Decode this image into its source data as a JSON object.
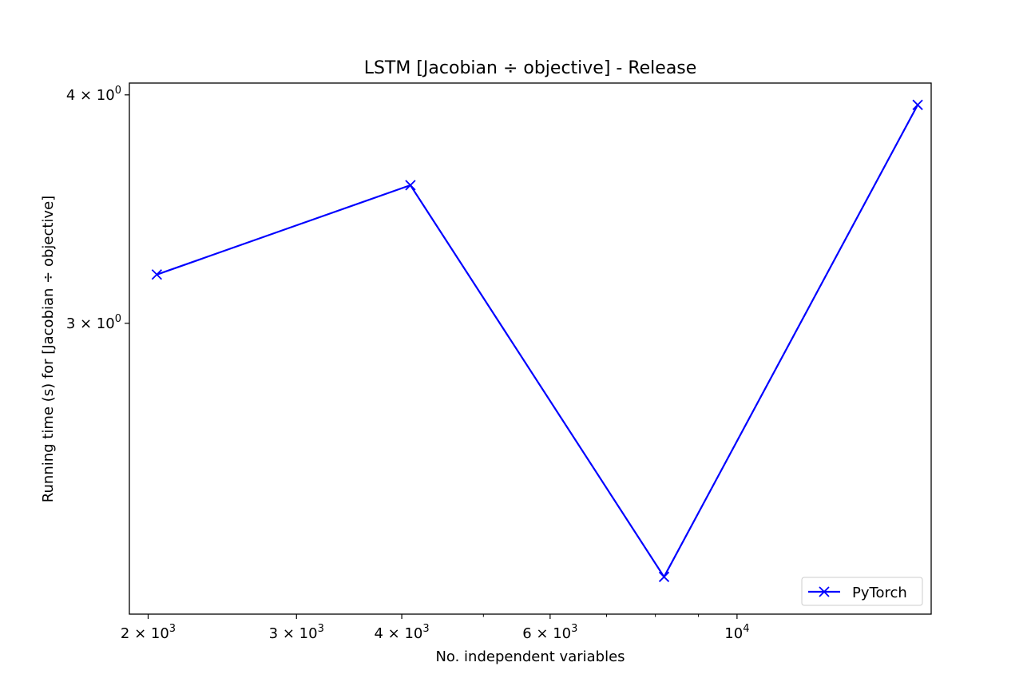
{
  "chart_data": {
    "type": "line",
    "title": "LSTM [Jacobian ÷ objective] - Release",
    "xlabel": "No. independent variables",
    "ylabel": "Running time (s) for [Jacobian ÷ objective]",
    "xscale": "log",
    "yscale": "log",
    "xlim": [
      1900,
      17000
    ],
    "ylim": [
      2.08,
      4.06
    ],
    "grid": false,
    "legend": {
      "placement": "lower-right",
      "entries": [
        "PyTorch"
      ]
    },
    "series": [
      {
        "name": "PyTorch",
        "color": "#0000ff",
        "marker": "x",
        "x": [
          2048,
          4096,
          8192,
          16384
        ],
        "y": [
          3.19,
          3.57,
          2.18,
          3.95
        ]
      }
    ],
    "xticks": [
      {
        "value": 2000,
        "base": "2 × 10",
        "exp": "3"
      },
      {
        "value": 3000,
        "base": "3 × 10",
        "exp": "3"
      },
      {
        "value": 4000,
        "base": "4 × 10",
        "exp": "3"
      },
      {
        "value": 6000,
        "base": "6 × 10",
        "exp": "3"
      },
      {
        "value": 10000,
        "base": "10",
        "exp": "4"
      }
    ],
    "xminor": [
      5000,
      7000,
      8000,
      9000
    ],
    "yticks": [
      {
        "value": 3,
        "base": "3 × 10",
        "exp": "0"
      },
      {
        "value": 4,
        "base": "4 × 10",
        "exp": "0"
      }
    ]
  }
}
